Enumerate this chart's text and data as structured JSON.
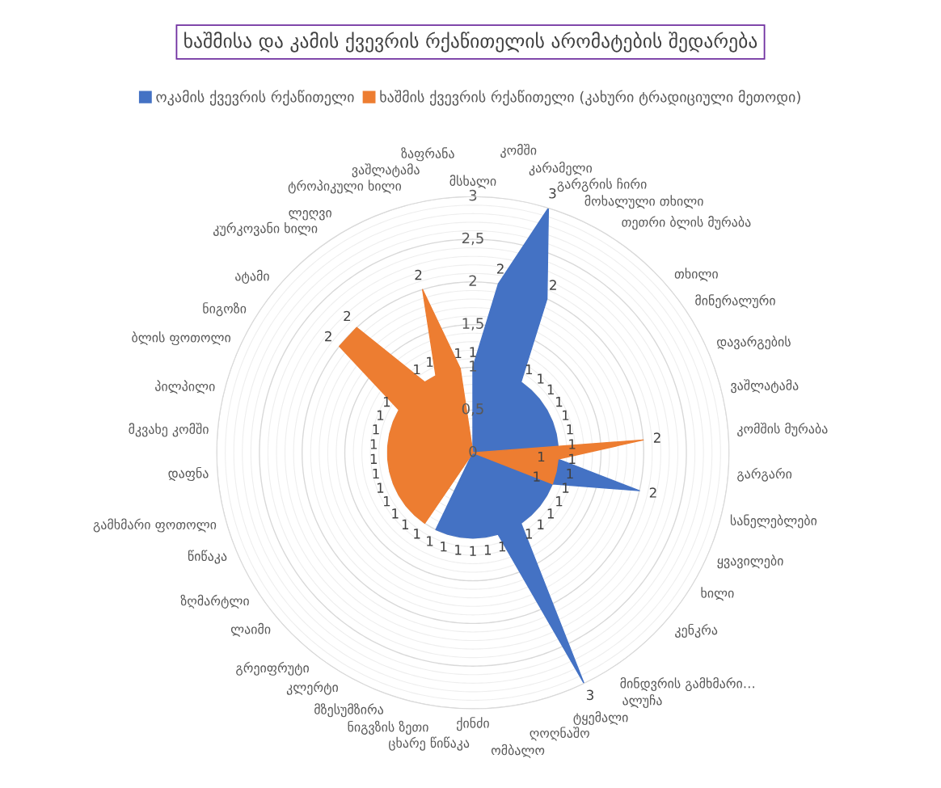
{
  "chart_data": {
    "type": "radar",
    "title": "ხაშმისა და კამის ქვევრის რქაწითელის არომატების შედარება",
    "categories": [
      "მსხალი",
      "კომში",
      "კარამელი",
      "გარგრის ჩირი",
      "მოხალული თხილი",
      "თეთრი ბლის მურაბა",
      "თხილი",
      "მინერალური",
      "დავარგების",
      "ვაშლატამა",
      "კომშის მურაბა",
      "გარგარი",
      "სანელებლები",
      "ყვავილები",
      "ხილი",
      "კენკრა",
      "მინდვრის გამხმარი…",
      "ალუჩა",
      "ტყემალი",
      "ღოღნაშო",
      "ომბალო",
      "ქინძი",
      "ცხარე წიწაკა",
      "ნიგვზის ზეთი",
      "მზესუმზირა",
      "კლერტი",
      "გრეიფრუტი",
      "ლაიმი",
      "ზღმარტლი",
      "წიწაკა",
      "გამხმარი ფოთოლი",
      "დაფნა",
      "მკვახე კომში",
      "პილპილი",
      "ბლის ფოთოლი",
      "ნიგოზი",
      "ატამი",
      "კურკოვანი ხილი",
      "ლეღვი",
      "ტროპიკული ხილი",
      "ვაშლატამა",
      "ზაფრანა"
    ],
    "series": [
      {
        "name": "ოკამის ქვევრის რქაწითელი",
        "color": "#4472c4",
        "values": [
          1,
          2,
          3,
          2,
          1,
          1,
          1,
          1,
          1,
          1,
          1,
          1,
          2,
          1,
          1,
          1,
          1,
          1,
          3,
          1,
          1,
          1,
          1,
          1,
          1,
          0,
          0,
          0,
          0,
          0,
          0,
          0,
          0,
          0,
          0,
          0,
          0,
          0,
          0,
          0,
          0,
          0
        ],
        "value_labels": [
          "1",
          "2",
          "3",
          "2",
          "1",
          "1",
          "1",
          "1",
          "1",
          "1",
          "1",
          "1",
          "2",
          "1",
          "1",
          "1",
          "1",
          "1",
          "3",
          "1",
          "1",
          "1",
          "1",
          "1",
          "1",
          null,
          null,
          null,
          null,
          null,
          null,
          null,
          null,
          null,
          null,
          null,
          null,
          null,
          null,
          null,
          null,
          null
        ]
      },
      {
        "name": "ხაშმის ქვევრის რქაწითელი (კახური ტრადიციული მეთოდი)",
        "color": "#ed7d31",
        "values": [
          0,
          0,
          0,
          0,
          0,
          0,
          0,
          0,
          0,
          0,
          2,
          1,
          1,
          1,
          0,
          0,
          0,
          0,
          0,
          0,
          0,
          0,
          0,
          0,
          0,
          1,
          1,
          1,
          1,
          1,
          1,
          1,
          1,
          1,
          1,
          1,
          2,
          2,
          1,
          1,
          2,
          1
        ],
        "value_labels": [
          null,
          null,
          null,
          null,
          null,
          null,
          null,
          null,
          null,
          null,
          "2",
          "1",
          "1",
          "1",
          null,
          null,
          null,
          null,
          null,
          null,
          null,
          null,
          null,
          null,
          null,
          "1",
          "1",
          "1",
          "1",
          "1",
          "1",
          "1",
          "1",
          "1",
          "1",
          "1",
          "2",
          "2",
          "1",
          "1",
          "2",
          "1"
        ]
      }
    ],
    "ylim": [
      0,
      3
    ],
    "yticks": [
      0,
      {
        "value": 0.5,
        "label": "0,5"
      },
      1,
      {
        "value": 1.5,
        "label": "1,5"
      },
      2,
      {
        "value": 2.5,
        "label": "2,5"
      },
      3
    ],
    "grid": true,
    "legend": "top"
  }
}
